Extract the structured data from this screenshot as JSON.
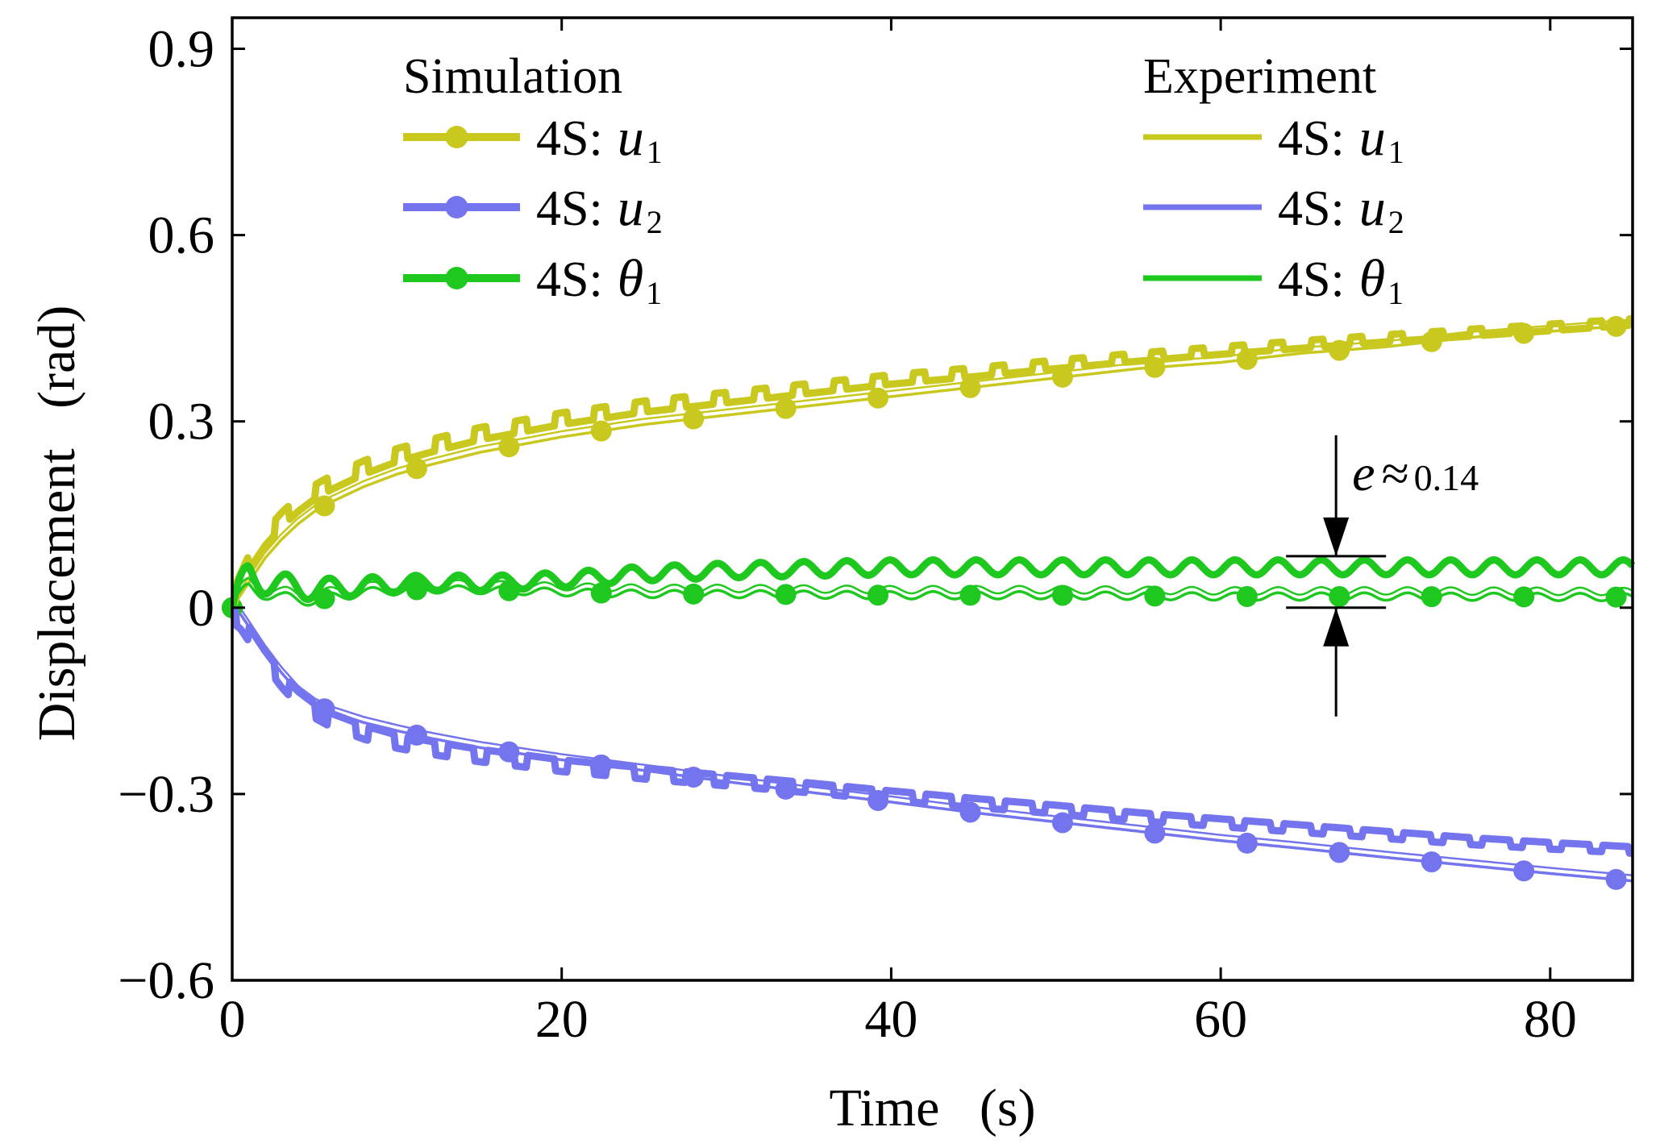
{
  "chart_data": {
    "type": "line",
    "title": "",
    "xlabel": "Time   (s)",
    "ylabel": "Displacement   (rad)",
    "xlim": [
      0,
      85
    ],
    "ylim": [
      -0.6,
      0.95
    ],
    "xticks": [
      0,
      20,
      40,
      60,
      80
    ],
    "xtick_labels": [
      "0",
      "20",
      "40",
      "60",
      "80"
    ],
    "yticks": [
      -0.6,
      -0.3,
      0,
      0.3,
      0.6,
      0.9
    ],
    "ytick_labels": [
      "−0.6",
      "−0.3",
      "0",
      "0.3",
      "0.6",
      "0.9"
    ],
    "grid": false,
    "legend": {
      "placement": "top",
      "groups": [
        {
          "title": "Simulation",
          "marker": true,
          "entries": [
            {
              "prefix": "4S:",
              "var": "u",
              "sub": "1",
              "color_key": "yellow"
            },
            {
              "prefix": "4S:",
              "var": "u",
              "sub": "2",
              "color_key": "blue"
            },
            {
              "prefix": "4S:",
              "var": "θ",
              "sub": "1",
              "color_key": "green"
            }
          ]
        },
        {
          "title": "Experiment",
          "marker": false,
          "entries": [
            {
              "prefix": "4S:",
              "var": "u",
              "sub": "1",
              "color_key": "yellow"
            },
            {
              "prefix": "4S:",
              "var": "u",
              "sub": "2",
              "color_key": "blue"
            },
            {
              "prefix": "4S:",
              "var": "θ",
              "sub": "1",
              "color_key": "green"
            }
          ]
        }
      ]
    },
    "annotation": {
      "symbol": "e",
      "approx": "≈",
      "value": "0.14",
      "x": 67,
      "y_top": 0.083,
      "y_bottom": 0.0
    },
    "colors": {
      "yellow": "#c8c81e",
      "blue": "#7474ee",
      "green": "#1ec81e"
    },
    "series": [
      {
        "name": "Simulation 4S: u1",
        "group": "simulation",
        "color_key": "yellow",
        "markers_every": 5.6,
        "x": [
          0,
          0.5,
          1,
          2,
          3,
          4,
          5,
          6,
          8,
          10,
          12,
          15,
          18,
          20,
          25,
          30,
          35,
          40,
          45,
          50,
          55,
          60,
          65,
          70,
          75,
          80,
          85
        ],
        "y": [
          0,
          0.02,
          0.04,
          0.08,
          0.11,
          0.135,
          0.155,
          0.17,
          0.195,
          0.215,
          0.23,
          0.25,
          0.265,
          0.275,
          0.295,
          0.31,
          0.325,
          0.34,
          0.355,
          0.37,
          0.385,
          0.395,
          0.41,
          0.42,
          0.435,
          0.445,
          0.455
        ]
      },
      {
        "name": "Simulation 4S: u2",
        "group": "simulation",
        "color_key": "blue",
        "markers_every": 5.6,
        "x": [
          0,
          0.5,
          1,
          2,
          3,
          4,
          5,
          6,
          8,
          10,
          12,
          15,
          18,
          20,
          25,
          30,
          35,
          40,
          45,
          50,
          55,
          60,
          65,
          70,
          75,
          80,
          85
        ],
        "y": [
          0,
          -0.01,
          -0.03,
          -0.07,
          -0.105,
          -0.135,
          -0.155,
          -0.168,
          -0.185,
          -0.198,
          -0.21,
          -0.225,
          -0.237,
          -0.245,
          -0.262,
          -0.28,
          -0.297,
          -0.313,
          -0.33,
          -0.345,
          -0.36,
          -0.375,
          -0.388,
          -0.402,
          -0.415,
          -0.428,
          -0.44
        ]
      },
      {
        "name": "Simulation 4S: θ1",
        "group": "simulation",
        "color_key": "green",
        "markers_every": 5.6,
        "wobble": 0.006,
        "x": [
          0,
          1,
          2,
          3,
          5,
          8,
          12,
          16,
          20,
          25,
          30,
          40,
          50,
          60,
          70,
          85
        ],
        "y": [
          0,
          0.03,
          0.025,
          0.015,
          0.012,
          0.025,
          0.03,
          0.028,
          0.025,
          0.022,
          0.022,
          0.02,
          0.02,
          0.018,
          0.018,
          0.017
        ]
      },
      {
        "name": "Experiment 4S: u1",
        "group": "experiment",
        "color_key": "yellow",
        "stairs": true,
        "x": [
          0,
          0.5,
          1,
          2,
          3,
          4,
          5,
          6,
          8,
          10,
          12,
          15,
          18,
          20,
          25,
          30,
          35,
          40,
          45,
          50,
          55,
          60,
          65,
          70,
          75,
          80,
          85
        ],
        "y": [
          0,
          0.03,
          0.06,
          0.1,
          0.13,
          0.155,
          0.175,
          0.19,
          0.215,
          0.235,
          0.25,
          0.27,
          0.285,
          0.295,
          0.315,
          0.33,
          0.345,
          0.36,
          0.372,
          0.385,
          0.397,
          0.408,
          0.418,
          0.428,
          0.437,
          0.446,
          0.455
        ]
      },
      {
        "name": "Experiment 4S: u2",
        "group": "experiment",
        "color_key": "blue",
        "stairs": true,
        "x": [
          0,
          0.5,
          1,
          2,
          3,
          4,
          5,
          6,
          8,
          10,
          12,
          15,
          18,
          20,
          25,
          30,
          35,
          40,
          45,
          50,
          55,
          60,
          65,
          70,
          75,
          80,
          85
        ],
        "y": [
          0,
          -0.01,
          -0.03,
          -0.07,
          -0.105,
          -0.135,
          -0.155,
          -0.17,
          -0.19,
          -0.205,
          -0.215,
          -0.228,
          -0.238,
          -0.245,
          -0.258,
          -0.27,
          -0.282,
          -0.295,
          -0.307,
          -0.318,
          -0.33,
          -0.34,
          -0.35,
          -0.36,
          -0.37,
          -0.378,
          -0.385
        ]
      },
      {
        "name": "Experiment 4S: θ1",
        "group": "experiment",
        "color_key": "green",
        "wobble": 0.012,
        "x": [
          0,
          1,
          2,
          3,
          5,
          8,
          12,
          16,
          20,
          25,
          30,
          40,
          50,
          60,
          70,
          85
        ],
        "y": [
          0,
          0.05,
          0.045,
          0.035,
          0.03,
          0.035,
          0.04,
          0.04,
          0.045,
          0.055,
          0.06,
          0.065,
          0.065,
          0.065,
          0.065,
          0.065
        ]
      }
    ]
  }
}
